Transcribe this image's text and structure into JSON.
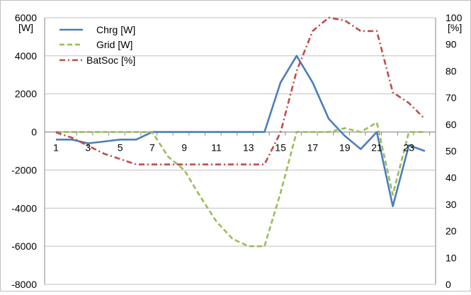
{
  "chart_data": {
    "type": "line",
    "title": "",
    "x": [
      1,
      2,
      3,
      4,
      5,
      6,
      7,
      8,
      9,
      10,
      11,
      12,
      13,
      14,
      15,
      16,
      17,
      18,
      19,
      20,
      21,
      22,
      23,
      24
    ],
    "x_tick_labels": [
      "1",
      "3",
      "5",
      "7",
      "9",
      "11",
      "13",
      "15",
      "17",
      "19",
      "21",
      "23"
    ],
    "y_left": {
      "unit_label": "[W]",
      "lim": [
        -8000,
        6000
      ],
      "ticks": [
        6000,
        4000,
        2000,
        0,
        -2000,
        -4000,
        -6000,
        -8000
      ]
    },
    "y_right": {
      "unit_label": "[%]",
      "lim": [
        0,
        100
      ],
      "ticks": [
        100,
        90,
        80,
        70,
        60,
        50,
        40,
        30,
        20,
        10,
        0
      ]
    },
    "series": [
      {
        "name": "Chrg [W]",
        "axis": "left",
        "color": "#4a7ebb",
        "dash": "solid",
        "values": [
          -400,
          -400,
          -600,
          -500,
          -400,
          -400,
          0,
          0,
          0,
          0,
          0,
          0,
          0,
          0,
          2600,
          4000,
          2600,
          700,
          -200,
          -900,
          0,
          -3900,
          -700,
          -1000
        ]
      },
      {
        "name": "Grid [W]",
        "axis": "left",
        "color": "#9bbb59",
        "dash": "dash",
        "values": [
          0,
          0,
          0,
          0,
          0,
          0,
          0,
          -1300,
          -2000,
          -3400,
          -4700,
          -5600,
          -6000,
          -6000,
          -3200,
          0,
          0,
          0,
          200,
          0,
          500,
          -3300,
          0,
          0
        ]
      },
      {
        "name": "BatSoc [%]",
        "axis": "right",
        "color": "#be4b48",
        "dash": "dashdot",
        "values": [
          57,
          55,
          52,
          49,
          47,
          45,
          45,
          45,
          45,
          45,
          45,
          45,
          45,
          45,
          57,
          80,
          95,
          100,
          99,
          95,
          95,
          72,
          68,
          62
        ]
      }
    ],
    "grid": "horizontal",
    "legend": "top-left"
  }
}
